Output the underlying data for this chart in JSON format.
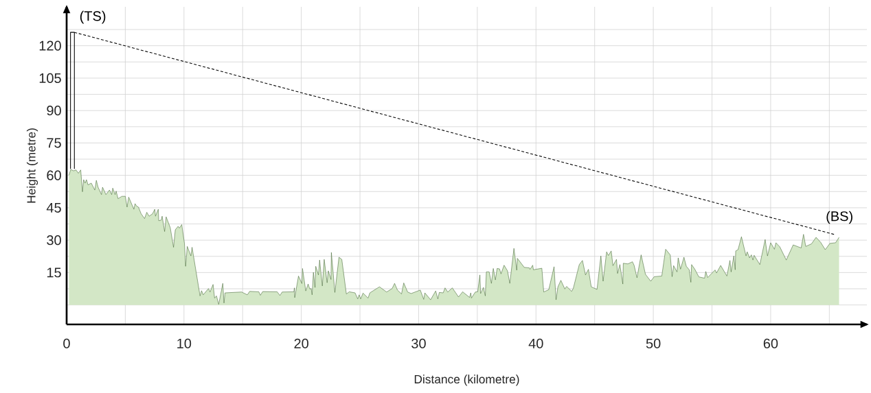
{
  "chart_data": {
    "type": "area",
    "xlabel": "Distance (kilometre)",
    "ylabel": "Height (metre)",
    "xlim": [
      0,
      68.2
    ],
    "ylim": [
      -9,
      138
    ],
    "xticks": [
      0,
      {
        "value": 5,
        "label": null
      },
      10,
      {
        "value": 15,
        "label": null
      },
      20,
      {
        "value": 25,
        "label": null
      },
      30,
      {
        "value": 35,
        "label": null
      },
      40,
      {
        "value": 45,
        "label": null
      },
      50,
      {
        "value": 55,
        "label": null
      },
      60,
      {
        "value": 65,
        "label": null
      }
    ],
    "yticks": [
      {
        "value": 0,
        "label": null
      },
      {
        "value": 7.5,
        "label": null
      },
      15,
      {
        "value": 22.5,
        "label": null
      },
      30,
      {
        "value": 37.5,
        "label": null
      },
      45,
      {
        "value": 52.5,
        "label": null
      },
      60,
      {
        "value": 67.5,
        "label": null
      },
      75,
      {
        "value": 82.5,
        "label": null
      },
      90,
      {
        "value": 97.5,
        "label": null
      },
      105,
      {
        "value": 112.5,
        "label": null
      },
      120,
      {
        "value": 127.5,
        "label": null
      }
    ],
    "grid": true,
    "series": [
      {
        "color": "#3b5e2b",
        "x": [
          0.2,
          0.35,
          0.6,
          0.8,
          1.0,
          1.2,
          1.35,
          1.45,
          1.57,
          1.69,
          1.82,
          2.1,
          2.4,
          2.53,
          2.68,
          2.97,
          3.06,
          3.35,
          3.65,
          3.84,
          3.93,
          4.13,
          4.22,
          4.38,
          4.71,
          5.0,
          5.15,
          5.29,
          5.48,
          5.73,
          5.83,
          5.96,
          6.12,
          6.35,
          6.64,
          6.83,
          7.03,
          7.32,
          7.51,
          7.57,
          7.81,
          7.85,
          8.06,
          8.14,
          8.35,
          8.48,
          8.83,
          9.11,
          9.26,
          9.5,
          9.61,
          9.81,
          10.04,
          10.14,
          10.28,
          10.59,
          10.69,
          11.37,
          11.5,
          11.64,
          12.09,
          12.22,
          12.48,
          12.61,
          12.77,
          12.96,
          13.31,
          13.41,
          13.5,
          14.91,
          15.4,
          15.6,
          16.38,
          16.51,
          16.71,
          17.94,
          18.18,
          18.37,
          19.37,
          19.41,
          19.44,
          19.76,
          20.05,
          20.1,
          20.38,
          20.58,
          20.72,
          20.84,
          20.92,
          21.03,
          21.17,
          21.23,
          21.46,
          21.56,
          21.79,
          21.95,
          22.2,
          22.3,
          22.53,
          22.56,
          22.86,
          23.21,
          23.45,
          23.84,
          24.09,
          24.58,
          24.81,
          24.93,
          25.06,
          25.26,
          25.69,
          25.84,
          26.66,
          27.27,
          27.74,
          27.95,
          28.19,
          28.54,
          28.73,
          29.06,
          29.36,
          30.14,
          30.43,
          30.53,
          31.02,
          31.45,
          31.64,
          31.76,
          32.09,
          32.25,
          32.48,
          32.87,
          33.4,
          33.75,
          34.34,
          34.44,
          34.5,
          34.83,
          35.03,
          35.22,
          35.28,
          35.52,
          35.68,
          35.77,
          36.01,
          36.2,
          36.36,
          36.54,
          36.69,
          36.89,
          37.02,
          37.28,
          37.57,
          37.77,
          38.12,
          38.36,
          38.41,
          39.0,
          39.43,
          39.49,
          39.72,
          39.78,
          40.5,
          40.66,
          41.09,
          41.54,
          41.71,
          41.87,
          42.12,
          42.46,
          42.61,
          43.04,
          43.18,
          43.69,
          43.96,
          44.22,
          44.47,
          44.71,
          45.2,
          45.53,
          45.72,
          46.02,
          46.17,
          46.41,
          46.56,
          46.86,
          46.95,
          47.15,
          47.4,
          47.44,
          47.83,
          48.22,
          48.36,
          48.61,
          48.96,
          49.33,
          49.78,
          50.08,
          50.72,
          51.05,
          51.44,
          51.6,
          51.73,
          52.02,
          52.12,
          52.32,
          52.61,
          52.81,
          53.06,
          53.2,
          53.26,
          53.53,
          53.88,
          54.37,
          54.47,
          54.63,
          55.26,
          55.39,
          55.74,
          56.27,
          56.53,
          56.63,
          56.86,
          56.98,
          57.02,
          57.22,
          57.51,
          57.9,
          58.0,
          58.2,
          58.36,
          58.49,
          58.59,
          59.08,
          59.53,
          59.73,
          60.0,
          60.32,
          60.45,
          60.78,
          61.33,
          61.92,
          62.6,
          62.8,
          62.99,
          63.48,
          63.87,
          64.26,
          64.65,
          65.05,
          65.53,
          65.83
        ],
        "values": [
          60.1,
          62.7,
          62.1,
          62.5,
          61,
          62.5,
          52.4,
          58,
          56.4,
          58,
          55.6,
          56.4,
          53.2,
          57.7,
          54.5,
          51.1,
          54.5,
          51.1,
          53.2,
          51.1,
          54.1,
          51.1,
          52.7,
          49.2,
          50.3,
          50.3,
          45.3,
          49.9,
          47.5,
          44.3,
          46.9,
          45.8,
          45.3,
          42.2,
          40,
          42.9,
          41.1,
          42.2,
          44.3,
          41.1,
          44.3,
          39,
          39.3,
          41.1,
          34,
          40.8,
          35.8,
          26.7,
          34.8,
          36.4,
          35.6,
          37.2,
          28.5,
          17.9,
          27.1,
          22.7,
          26.7,
          4.2,
          6.6,
          4.7,
          7.6,
          6,
          9.5,
          3.2,
          4.2,
          0.3,
          10,
          0.9,
          5.6,
          6,
          4.7,
          6.3,
          6.1,
          4.5,
          6.2,
          6.1,
          4.4,
          6,
          6.1,
          7.9,
          3.4,
          13.4,
          9.9,
          16.9,
          6.5,
          9.7,
          7.4,
          7.6,
          4.7,
          15.1,
          8.1,
          17.9,
          13.9,
          20.8,
          8.8,
          21.1,
          10.3,
          15.8,
          11.8,
          24.3,
          5.8,
          22.1,
          21.1,
          5.1,
          6.1,
          5.6,
          2.8,
          4.7,
          2.8,
          5.5,
          3.2,
          5.6,
          8.4,
          6,
          7.6,
          10,
          6.9,
          5.1,
          10.2,
          6,
          5.3,
          6.9,
          2.6,
          5.6,
          2.4,
          6.5,
          2.8,
          5.8,
          5.6,
          7.9,
          6,
          7.9,
          3.7,
          6.1,
          3.5,
          5.6,
          3.2,
          6,
          6.1,
          13.9,
          5.3,
          8.1,
          4.2,
          15.3,
          15.3,
          10,
          16.9,
          11.6,
          16.9,
          16.7,
          14.4,
          18.4,
          15.8,
          10,
          26.2,
          16.1,
          21.6,
          17.4,
          17.2,
          16.5,
          18.4,
          16.3,
          17,
          6,
          7.1,
          17.7,
          2.4,
          8.4,
          11.4,
          7.4,
          8.6,
          6.3,
          7.7,
          18.7,
          20.6,
          13.9,
          16.5,
          8.4,
          7.2,
          22.7,
          11,
          24.6,
          22.9,
          25,
          18.2,
          21.1,
          14.6,
          18.7,
          9.7,
          19.3,
          19,
          20,
          18.4,
          12.6,
          23.2,
          14.2,
          11,
          13.1,
          13.4,
          25.8,
          23.2,
          13.1,
          18.2,
          15.3,
          21.8,
          16.6,
          22.1,
          17.9,
          16.3,
          10.5,
          18.7,
          16.6,
          13,
          12.4,
          15.5,
          12.7,
          16.2,
          14.8,
          18.3,
          13.4,
          20.6,
          15.3,
          22.7,
          16.3,
          25,
          25.6,
          31.6,
          22.7,
          24.6,
          21.8,
          23.2,
          20.8,
          23,
          18.7,
          30.3,
          22.7,
          28.8,
          25.8,
          28.8,
          26.9,
          20.8,
          27.8,
          26.4,
          32.7,
          27.1,
          28.3,
          31.3,
          29,
          25.6,
          28.5,
          28.8,
          31.3
        ]
      },
      {
        "type": "line",
        "color": "#000000",
        "x": [
          0.33,
          0.33,
          0.66,
          0.66
        ],
        "values": [
          63,
          126.2,
          126.2,
          63
        ]
      },
      {
        "type": "line",
        "color": "#000000",
        "line_style": "dashed",
        "x": [
          0.66,
          65.4
        ],
        "values": [
          126.2,
          32.7
        ]
      }
    ],
    "annotations": [
      {
        "text": "(TS)",
        "x": 0.66,
        "y": 126.2
      },
      {
        "text": "(BS)",
        "x": 65.4,
        "y": 32.7
      }
    ]
  }
}
